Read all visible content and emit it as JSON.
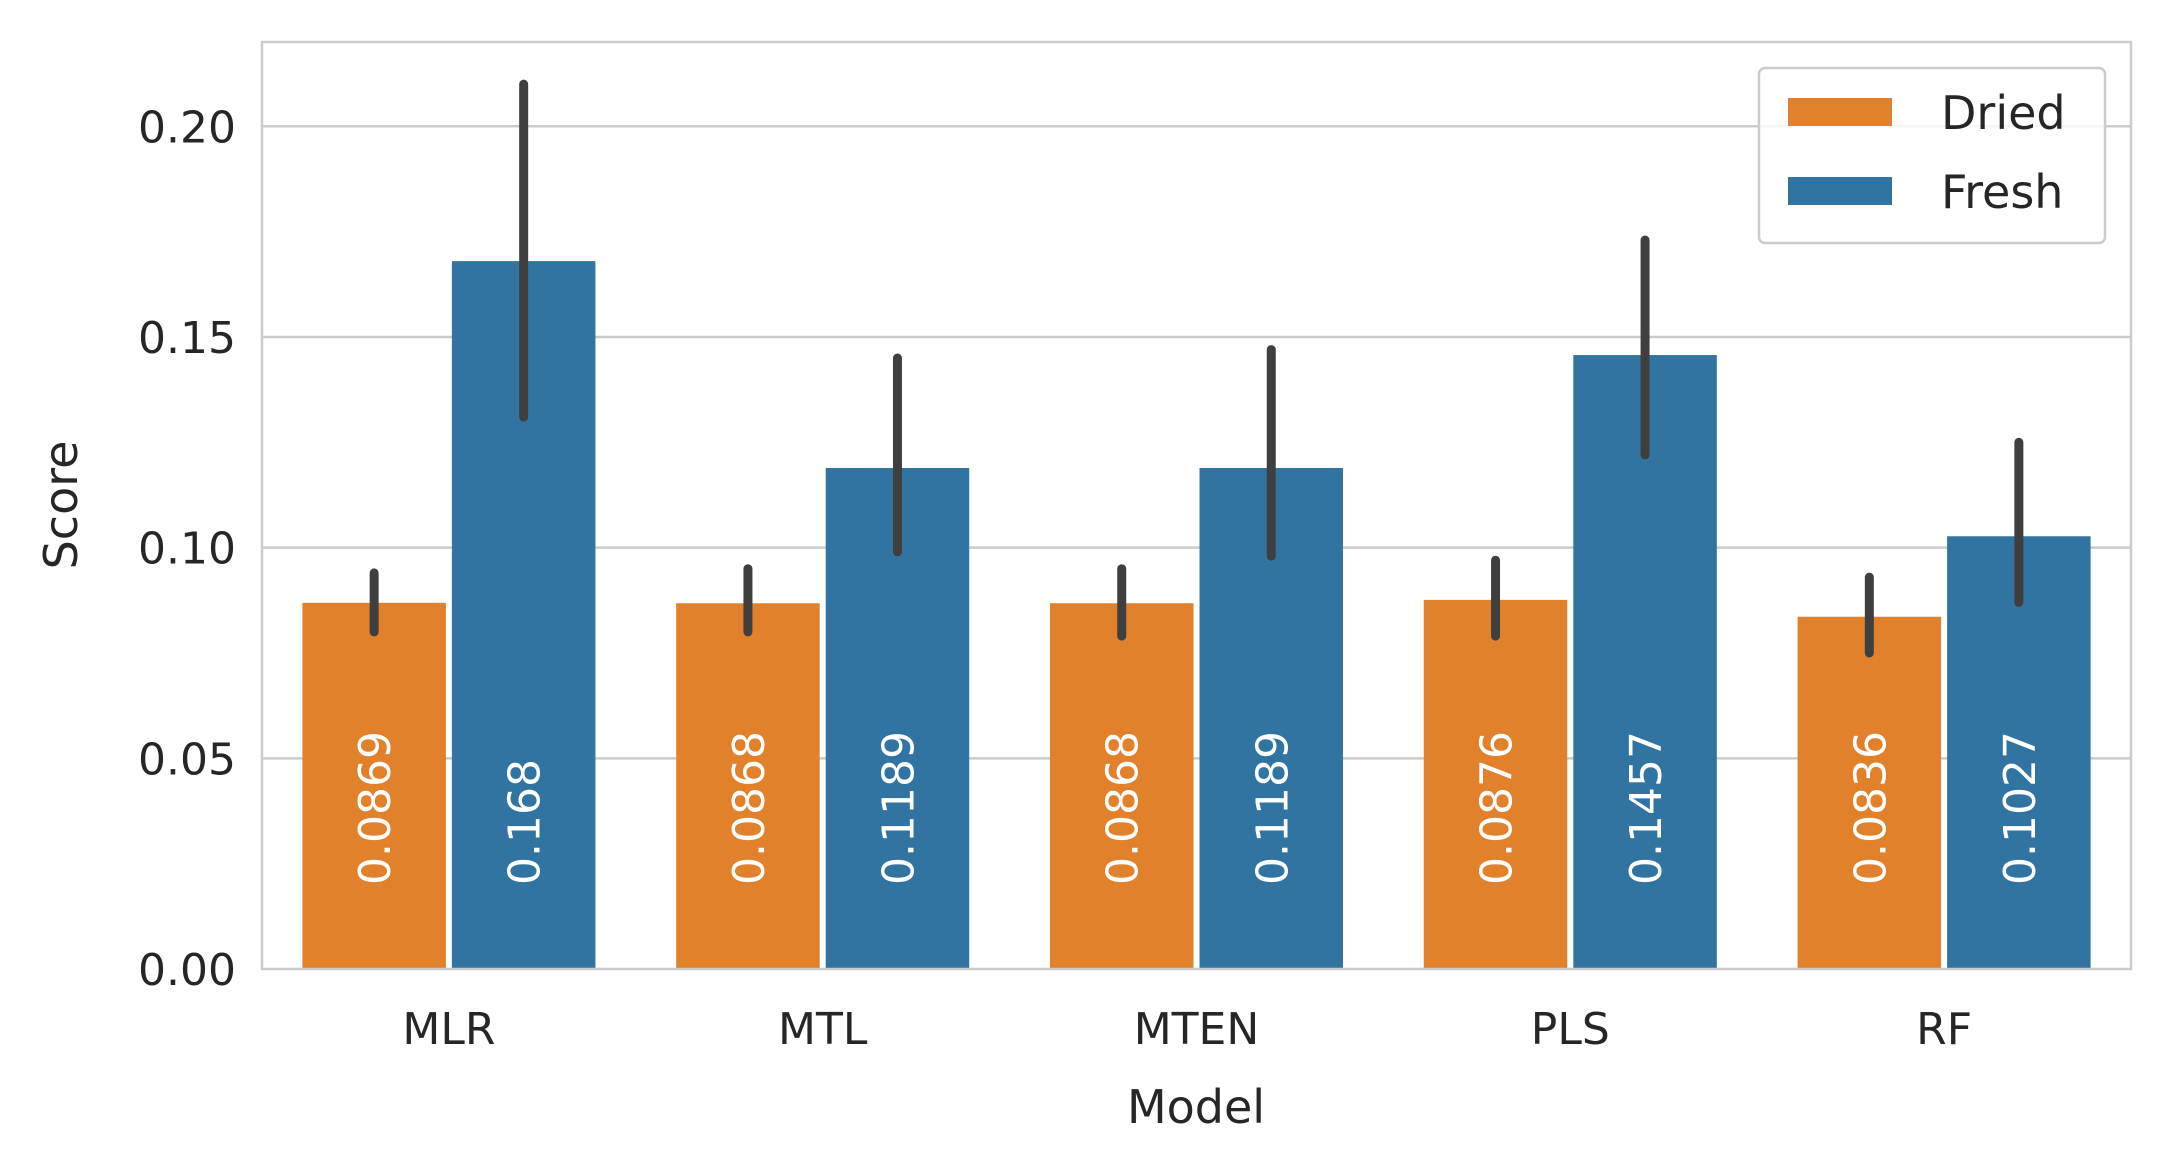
{
  "chart_data": {
    "type": "bar",
    "title": "",
    "xlabel": "Model",
    "ylabel": "Score",
    "ylim": [
      0,
      0.22
    ],
    "yticks": [
      0.0,
      0.05,
      0.1,
      0.15,
      0.2
    ],
    "ytick_labels": [
      "0.00",
      "0.05",
      "0.10",
      "0.15",
      "0.20"
    ],
    "categories": [
      "MLR",
      "MTL",
      "MTEN",
      "PLS",
      "RF"
    ],
    "grid": true,
    "legend_position": "top-right",
    "series": [
      {
        "name": "Dried",
        "color": "#e1812c",
        "values": [
          0.0869,
          0.0868,
          0.0868,
          0.0876,
          0.0836
        ],
        "value_labels": [
          "0.0869",
          "0.0868",
          "0.0868",
          "0.0876",
          "0.0836"
        ],
        "error_low": [
          0.08,
          0.08,
          0.079,
          0.079,
          0.075
        ],
        "error_high": [
          0.094,
          0.095,
          0.095,
          0.097,
          0.093
        ]
      },
      {
        "name": "Fresh",
        "color": "#3274a1",
        "values": [
          0.168,
          0.1189,
          0.1189,
          0.1457,
          0.1027
        ],
        "value_labels": [
          "0.168",
          "0.1189",
          "0.1189",
          "0.1457",
          "0.1027"
        ],
        "error_low": [
          0.131,
          0.099,
          0.098,
          0.122,
          0.087
        ],
        "error_high": [
          0.21,
          0.145,
          0.147,
          0.173,
          0.125
        ]
      }
    ]
  }
}
